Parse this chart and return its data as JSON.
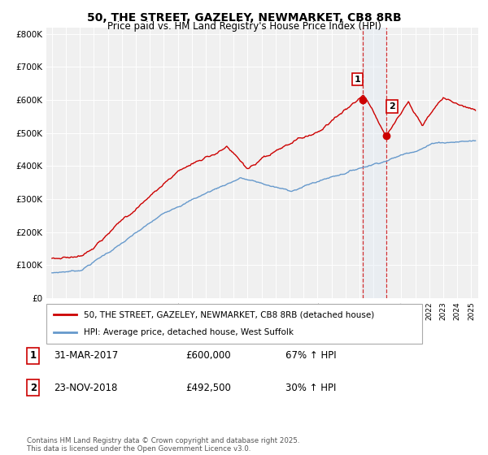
{
  "title": "50, THE STREET, GAZELEY, NEWMARKET, CB8 8RB",
  "subtitle": "Price paid vs. HM Land Registry's House Price Index (HPI)",
  "legend_entry1": "50, THE STREET, GAZELEY, NEWMARKET, CB8 8RB (detached house)",
  "legend_entry2": "HPI: Average price, detached house, West Suffolk",
  "transaction1_label": "1",
  "transaction1_date": "31-MAR-2017",
  "transaction1_price": "£600,000",
  "transaction1_hpi": "67% ↑ HPI",
  "transaction1_year": 2017.25,
  "transaction1_value": 600000,
  "transaction2_label": "2",
  "transaction2_date": "23-NOV-2018",
  "transaction2_price": "£492,500",
  "transaction2_hpi": "30% ↑ HPI",
  "transaction2_year": 2018.9,
  "transaction2_value": 492500,
  "copyright": "Contains HM Land Registry data © Crown copyright and database right 2025.\nThis data is licensed under the Open Government Licence v3.0.",
  "color_red": "#cc0000",
  "color_blue": "#6699cc",
  "color_highlight": "#dde8f5",
  "bg_color": "#f0f0f0",
  "grid_color": "#ffffff",
  "ylim": [
    0,
    820000
  ],
  "xlim_start": 1994.6,
  "xlim_end": 2025.5,
  "yticks": [
    0,
    100000,
    200000,
    300000,
    400000,
    500000,
    600000,
    700000,
    800000
  ],
  "ylabels": [
    "£0",
    "£100K",
    "£200K",
    "£300K",
    "£400K",
    "£500K",
    "£600K",
    "£700K",
    "£800K"
  ]
}
